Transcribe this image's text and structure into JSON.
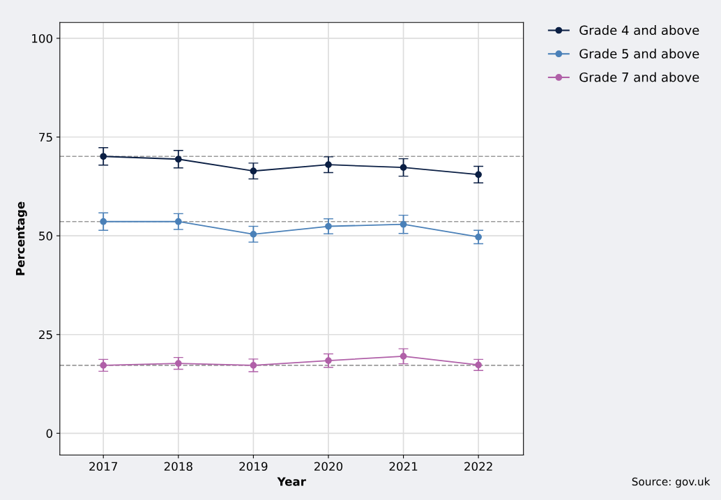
{
  "chart_data": {
    "type": "line",
    "xlabel": "Year",
    "ylabel": "Percentage",
    "x": [
      2017,
      2018,
      2019,
      2020,
      2021,
      2022
    ],
    "xlim": [
      2016.42,
      2022.6
    ],
    "xticks": [
      2017,
      2018,
      2019,
      2020,
      2021,
      2022
    ],
    "ylim": [
      -5.5,
      104
    ],
    "yticks": [
      0,
      25,
      50,
      75,
      100
    ],
    "series": [
      {
        "name": "Grade 4 and above",
        "color": "#0b1f44",
        "values": [
          70.1,
          69.4,
          66.4,
          68.0,
          67.3,
          65.5
        ],
        "errors": [
          2.2,
          2.2,
          2.0,
          2.0,
          2.2,
          2.1
        ]
      },
      {
        "name": "Grade 5 and above",
        "color": "#4a80b8",
        "values": [
          53.6,
          53.6,
          50.4,
          52.4,
          52.9,
          49.7
        ],
        "errors": [
          2.2,
          2.0,
          2.0,
          1.9,
          2.3,
          1.7
        ]
      },
      {
        "name": "Grade 7 and above",
        "color": "#b060a8",
        "values": [
          17.2,
          17.7,
          17.2,
          18.4,
          19.5,
          17.3
        ],
        "errors": [
          1.5,
          1.5,
          1.6,
          1.7,
          1.9,
          1.4
        ]
      }
    ],
    "ref_lines": [
      {
        "axis": "y",
        "value": 70.1,
        "label": null,
        "color": "#999999",
        "line_style": "dashed"
      },
      {
        "axis": "y",
        "value": 53.6,
        "label": null,
        "color": "#999999",
        "line_style": "dashed"
      },
      {
        "axis": "y",
        "value": 17.2,
        "label": null,
        "color": "#999999",
        "line_style": "dashed"
      }
    ],
    "marker": "circle",
    "line_style": "solid",
    "grid": true,
    "legend": "top right",
    "annotations": [
      "Source: gov.uk"
    ]
  }
}
